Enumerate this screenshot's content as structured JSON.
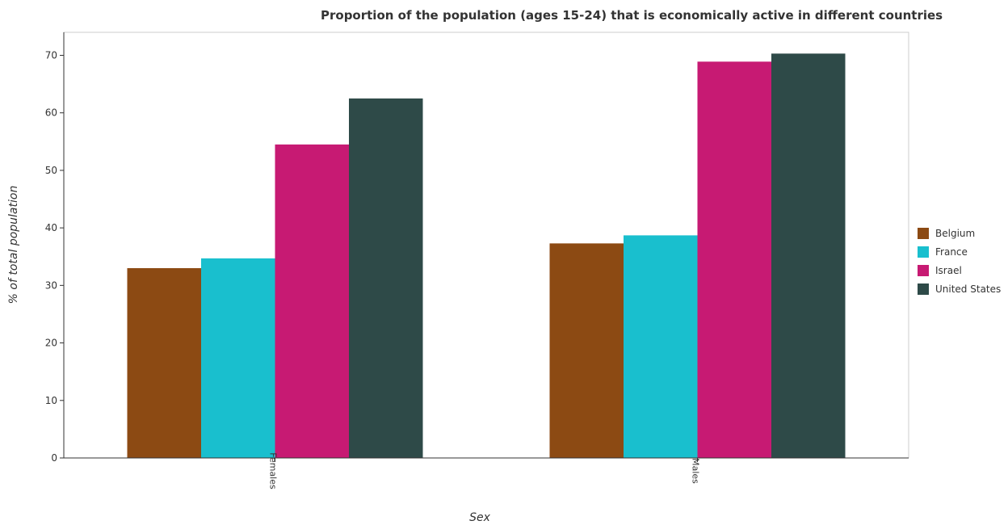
{
  "chart_data": {
    "type": "bar",
    "title": "Proportion of the population (ages 15-24) that is economically active in different countries",
    "xlabel": "Sex",
    "ylabel": "% of total population",
    "categories": [
      "Females",
      "Males"
    ],
    "series": [
      {
        "name": "Belgium",
        "values": [
          33.0,
          37.3
        ],
        "color": "#8c4a13"
      },
      {
        "name": "France",
        "values": [
          34.7,
          38.7
        ],
        "color": "#19bfce"
      },
      {
        "name": "Israel",
        "values": [
          54.5,
          68.9
        ],
        "color": "#c71a73"
      },
      {
        "name": "United States",
        "values": [
          62.5,
          70.3
        ],
        "color": "#2e4a48"
      }
    ],
    "ylim": [
      0,
      74
    ],
    "yticks": [
      0,
      10,
      20,
      30,
      40,
      50,
      60,
      70
    ],
    "grid": false,
    "legend_position": "right"
  }
}
